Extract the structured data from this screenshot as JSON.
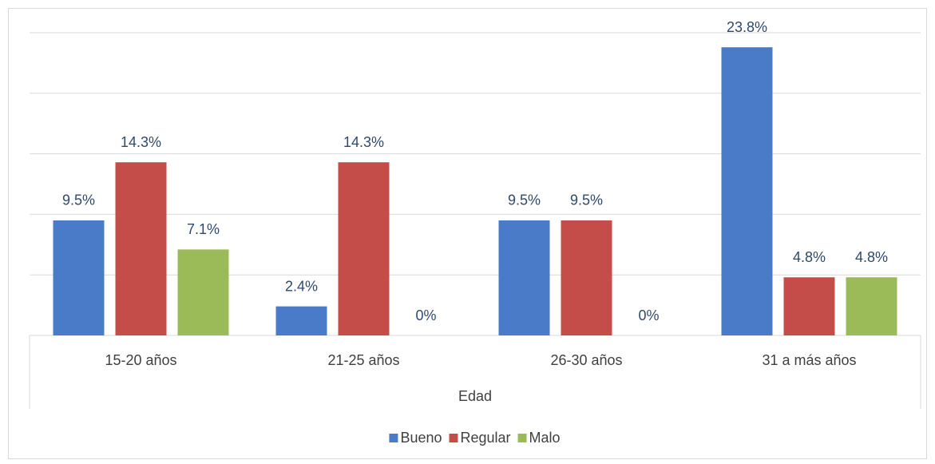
{
  "chart_data": {
    "type": "bar",
    "x_label": "Edad",
    "categories": [
      "15-20 años",
      "21-25 años",
      "26-30 años",
      "31 a más años"
    ],
    "series": [
      {
        "name": "Bueno",
        "color": "#4a7bc8",
        "values": [
          9.5,
          2.4,
          9.5,
          23.8
        ],
        "value_labels": [
          "9.5%",
          "2.4%",
          "9.5%",
          "23.8%"
        ]
      },
      {
        "name": "Regular",
        "color": "#c44d4a",
        "values": [
          14.3,
          14.3,
          9.5,
          4.8
        ],
        "value_labels": [
          "14.3%",
          "14.3%",
          "9.5%",
          "4.8%"
        ]
      },
      {
        "name": "Malo",
        "color": "#9bbb59",
        "values": [
          7.1,
          0,
          0,
          4.8
        ],
        "value_labels": [
          "7.1%",
          "0%",
          "0%",
          "4.8%"
        ]
      }
    ],
    "ylim": [
      0,
      25
    ],
    "yticks": [
      0,
      5,
      10,
      15,
      20,
      25
    ],
    "grid": true,
    "legend": "bottom"
  }
}
